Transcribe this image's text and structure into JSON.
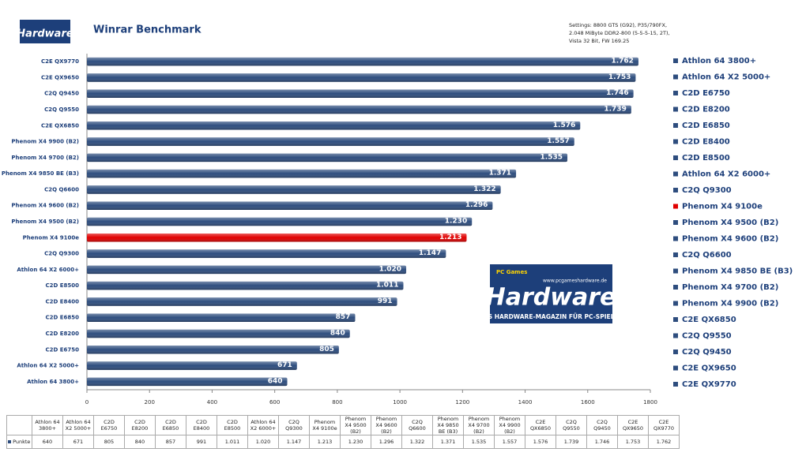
{
  "chart_data": {
    "type": "hbar",
    "title": "Winrar Benchmark",
    "settings": [
      "Settings: 8800 GTS (G92), P35/790FX,",
      "2.048 MiByte DDR2-800 (5-5-5-15, 2T),",
      "Vista 32 Bit, FW 169.25"
    ],
    "logo": {
      "brand": "Hardware",
      "tagline": "DAS HARDWARE-MAGAZIN FÜR PC-SPIELER",
      "url": "www.pcgameshardware.de",
      "prefix": "PC Games"
    },
    "categories": [
      "Athlon 64 3800+",
      "Athlon 64 X2 5000+",
      "C2D E6750",
      "C2D E8200",
      "C2D E6850",
      "C2D E8400",
      "C2D E8500",
      "Athlon 64 X2 6000+",
      "C2Q Q9300",
      "Phenom X4 9100e",
      "Phenom X4 9500 (B2)",
      "Phenom X4 9600 (B2)",
      "C2Q Q6600",
      "Phenom X4 9850 BE (B3)",
      "Phenom X4 9700 (B2)",
      "Phenom X4 9900 (B2)",
      "C2E QX6850",
      "C2Q Q9550",
      "C2Q Q9450",
      "C2E QX9650",
      "C2E QX9770"
    ],
    "series": [
      {
        "name": "Punkte",
        "colors": [
          "#2e4d7e",
          "#2e4d7e",
          "#2e4d7e",
          "#2e4d7e",
          "#2e4d7e",
          "#2e4d7e",
          "#2e4d7e",
          "#2e4d7e",
          "#2e4d7e",
          "#e00000",
          "#2e4d7e",
          "#2e4d7e",
          "#2e4d7e",
          "#2e4d7e",
          "#2e4d7e",
          "#2e4d7e",
          "#2e4d7e",
          "#2e4d7e",
          "#2e4d7e",
          "#2e4d7e",
          "#2e4d7e"
        ],
        "values": [
          640,
          671,
          805,
          840,
          857,
          991,
          1011,
          1020,
          1147,
          1213,
          1230,
          1296,
          1322,
          1371,
          1535,
          1557,
          1576,
          1739,
          1746,
          1753,
          1762
        ],
        "value_labels": [
          "640",
          "671",
          "805",
          "840",
          "857",
          "991",
          "1.011",
          "1.020",
          "1.147",
          "1.213",
          "1.230",
          "1.296",
          "1.322",
          "1.371",
          "1.535",
          "1.557",
          "1.576",
          "1.739",
          "1.746",
          "1.753",
          "1.762"
        ]
      }
    ],
    "xlim": [
      0,
      1800
    ],
    "xticks": [
      0,
      200,
      400,
      600,
      800,
      1000,
      1200,
      1400,
      1600,
      1800
    ],
    "grid": false
  }
}
